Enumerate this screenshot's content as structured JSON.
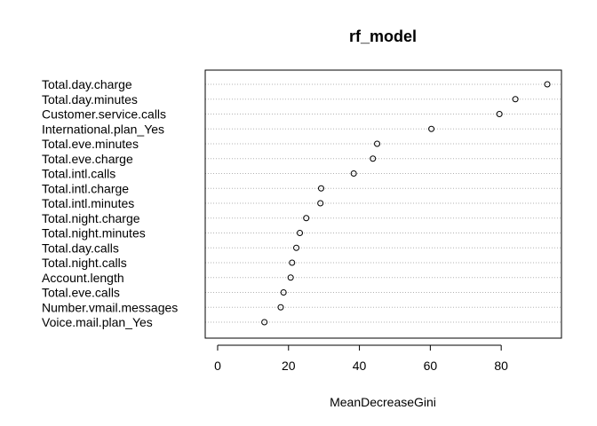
{
  "chart_data": {
    "type": "scatter",
    "title": "rf_model",
    "xlabel": "MeanDecreaseGini",
    "ylabel": "",
    "xlim": [
      -3.5,
      97
    ],
    "xticks": [
      0,
      20,
      40,
      60,
      80
    ],
    "grid": "dotted horizontal lines per variable",
    "categories": [
      "Total.day.charge",
      "Total.day.minutes",
      "Customer.service.calls",
      "International.plan_Yes",
      "Total.eve.minutes",
      "Total.eve.charge",
      "Total.intl.calls",
      "Total.intl.charge",
      "Total.intl.minutes",
      "Total.night.charge",
      "Total.night.minutes",
      "Total.day.calls",
      "Total.night.calls",
      "Account.length",
      "Total.eve.calls",
      "Number.vmail.messages",
      "Voice.mail.plan_Yes"
    ],
    "values": [
      93.0,
      84.0,
      79.5,
      60.3,
      45.0,
      43.8,
      38.4,
      29.2,
      29.0,
      25.0,
      23.2,
      22.2,
      21.0,
      20.6,
      18.6,
      17.8,
      13.2
    ]
  }
}
